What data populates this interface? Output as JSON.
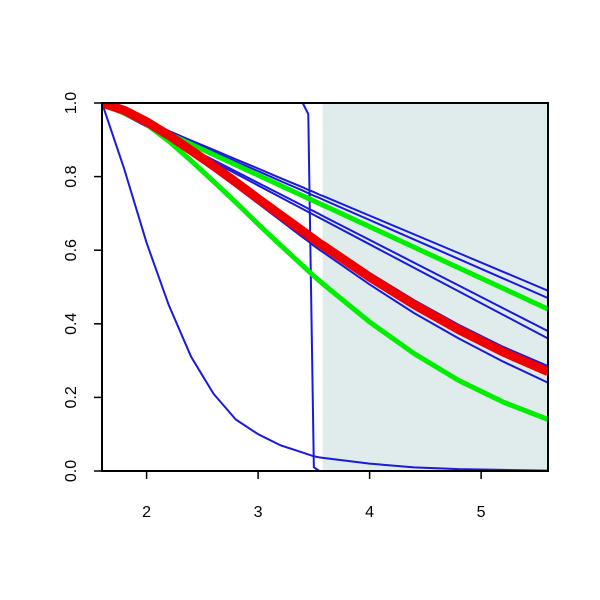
{
  "chart_data": {
    "type": "line",
    "x": [
      1.6,
      1.8,
      2.0,
      2.2,
      2.4,
      2.6,
      2.8,
      3.0,
      3.2,
      3.4,
      3.45,
      3.5,
      3.55,
      3.6,
      4.0,
      4.4,
      4.8,
      5.2,
      5.6
    ],
    "xlim": [
      1.6,
      5.6
    ],
    "xticks": [
      2,
      3,
      4,
      5
    ],
    "ylim": [
      0,
      1
    ],
    "yticks": [
      {
        "value": 0,
        "label": "0.0"
      },
      0.2,
      0.4,
      0.6,
      0.8,
      {
        "value": 1,
        "label": "1.0"
      }
    ],
    "shade_x": [
      3.58,
      5.6
    ],
    "shade_color": "#dfeceb",
    "series": [
      {
        "color": "#1a1adc",
        "values": [
          1.0,
          0.82,
          0.62,
          0.45,
          0.31,
          0.21,
          0.14,
          0.1,
          0.07,
          0.05,
          0.045,
          0.04,
          0.037,
          0.035,
          0.02,
          0.01,
          0.005,
          0.003,
          0.001
        ]
      },
      {
        "color": "#1a1adc",
        "values": [
          1.0,
          1.0,
          1.0,
          1.0,
          1.0,
          1.0,
          1.0,
          1.0,
          1.0,
          1.0,
          0.97,
          0.01,
          0,
          0,
          0,
          0,
          0,
          0,
          0
        ]
      },
      {
        "color": "#1a1adc",
        "values": [
          1,
          0.975,
          0.949,
          0.924,
          0.898,
          0.873,
          0.847,
          0.822,
          0.796,
          0.771,
          0.764,
          0.758,
          0.751,
          0.745,
          0.694,
          0.643,
          0.592,
          0.541,
          0.49
        ]
      },
      {
        "color": "#1a1adc",
        "values": [
          1,
          0.974,
          0.947,
          0.921,
          0.894,
          0.868,
          0.841,
          0.815,
          0.788,
          0.762,
          0.755,
          0.748,
          0.742,
          0.735,
          0.682,
          0.629,
          0.576,
          0.523,
          0.47
        ]
      },
      {
        "color": "#1a1adc",
        "values": [
          1,
          0.969,
          0.938,
          0.907,
          0.876,
          0.845,
          0.814,
          0.783,
          0.752,
          0.721,
          0.713,
          0.706,
          0.698,
          0.69,
          0.628,
          0.566,
          0.504,
          0.442,
          0.38
        ]
      },
      {
        "color": "#1a1adc",
        "values": [
          1,
          0.968,
          0.936,
          0.904,
          0.872,
          0.84,
          0.808,
          0.776,
          0.744,
          0.712,
          0.704,
          0.696,
          0.688,
          0.68,
          0.616,
          0.552,
          0.488,
          0.424,
          0.36
        ]
      },
      {
        "color": "#1a1adc",
        "values": [
          1,
          0.981,
          0.951,
          0.915,
          0.875,
          0.834,
          0.791,
          0.747,
          0.704,
          0.661,
          0.65,
          0.64,
          0.629,
          0.619,
          0.538,
          0.464,
          0.397,
          0.337,
          0.285
        ]
      },
      {
        "color": "#1a1adc",
        "values": [
          1,
          0.978,
          0.945,
          0.906,
          0.863,
          0.819,
          0.773,
          0.727,
          0.681,
          0.635,
          0.624,
          0.612,
          0.601,
          0.591,
          0.507,
          0.429,
          0.36,
          0.297,
          0.24
        ]
      },
      {
        "color": "#00ee00",
        "values": [
          1,
          0.972,
          0.944,
          0.916,
          0.888,
          0.86,
          0.832,
          0.804,
          0.776,
          0.748,
          0.741,
          0.734,
          0.727,
          0.72,
          0.664,
          0.608,
          0.552,
          0.496,
          0.44
        ]
      },
      {
        "color": "#00ee00",
        "values": [
          1,
          0.98,
          0.942,
          0.896,
          0.843,
          0.787,
          0.73,
          0.671,
          0.614,
          0.558,
          0.544,
          0.53,
          0.517,
          0.504,
          0.405,
          0.319,
          0.246,
          0.187,
          0.14
        ]
      },
      {
        "color": "#ee0000",
        "values": [
          1,
          0.98,
          0.949,
          0.912,
          0.871,
          0.829,
          0.785,
          0.74,
          0.696,
          0.652,
          0.641,
          0.63,
          0.619,
          0.609,
          0.527,
          0.452,
          0.384,
          0.323,
          0.27
        ]
      }
    ]
  }
}
